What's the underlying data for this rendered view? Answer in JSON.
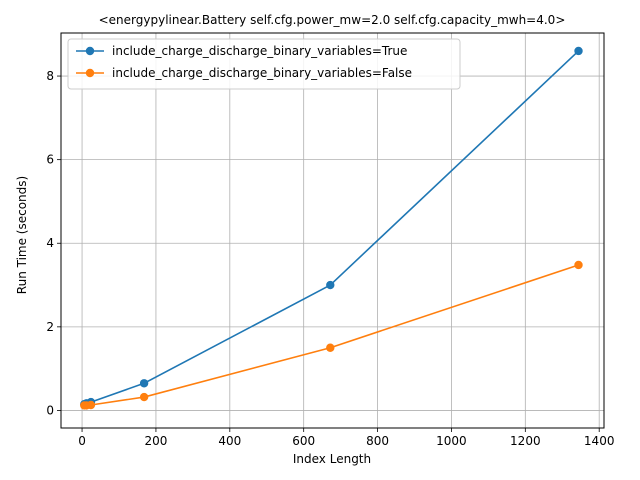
{
  "chart_data": {
    "type": "line",
    "title": "<energypylinear.Battery self.cfg.power_mw=2.0 self.cfg.capacity_mwh=4.0>",
    "xlabel": "Index Length",
    "ylabel": "Run Time (seconds)",
    "xlim": [
      -57,
      1413
    ],
    "ylim": [
      -0.42,
      9.03
    ],
    "xticks": [
      0,
      200,
      400,
      600,
      800,
      1000,
      1200,
      1400
    ],
    "yticks": [
      0,
      2,
      4,
      6,
      8
    ],
    "grid": true,
    "legend_position": "top-left",
    "series": [
      {
        "name": "include_charge_discharge_binary_variables=True",
        "color": "#1f77b4",
        "x": [
          6,
          12,
          24,
          168,
          672,
          1344
        ],
        "y": [
          0.15,
          0.17,
          0.2,
          0.65,
          3.0,
          8.6
        ]
      },
      {
        "name": "include_charge_discharge_binary_variables=False",
        "color": "#ff7f0e",
        "x": [
          6,
          12,
          24,
          168,
          672,
          1344
        ],
        "y": [
          0.12,
          0.12,
          0.13,
          0.32,
          1.5,
          3.48
        ]
      }
    ]
  }
}
